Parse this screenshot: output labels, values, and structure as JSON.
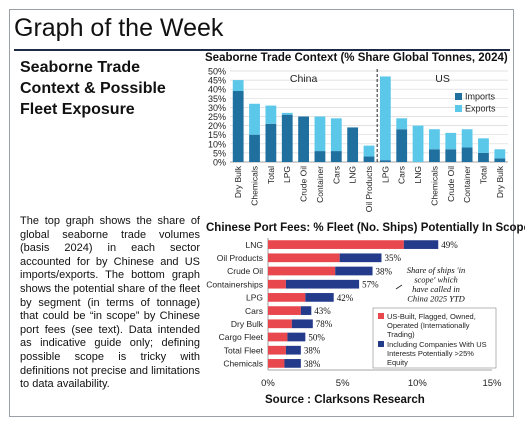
{
  "header": {
    "title": "Graph of the Week",
    "subtitle_lines": [
      "Seaborne Trade",
      "Context & Possible",
      "Fleet Exposure"
    ]
  },
  "description": "The top graph shows the share of global seaborne trade volumes (basis 2024) in each sector accounted for by Chinese and US imports/exports. The bottom graph shows the potential share of the fleet by segment (in terms of tonnage) that could be “in scope” by Chinese port fees (see text). Data intended as indicative guide only; defining possible scope is tricky with definitions not precise and limitations to data availability.",
  "source": "Source : Clarksons Research",
  "colors": {
    "imports": "#1f6f9f",
    "exports": "#5bc8ea",
    "us_built": "#e8474e",
    "us_interests": "#243a8a"
  },
  "chart_data": [
    {
      "type": "bar",
      "title": "Seaborne Trade Context (% Share Global Tonnes, 2024)",
      "ylim": [
        0,
        50
      ],
      "yticks": [
        "0%",
        "5%",
        "10%",
        "15%",
        "20%",
        "25%",
        "30%",
        "35%",
        "40%",
        "45%",
        "50%"
      ],
      "groups": [
        {
          "label": "China",
          "categories": [
            "Dry Bulk",
            "Chemicals",
            "Total",
            "LPG",
            "Crude Oil",
            "Container",
            "Cars",
            "LNG",
            "Oil Products"
          ],
          "imports": [
            39,
            15,
            21,
            26,
            25,
            6,
            6,
            19,
            3
          ],
          "exports": [
            6,
            17,
            10,
            1,
            0,
            19,
            18,
            0,
            6
          ]
        },
        {
          "label": "US",
          "categories": [
            "LPG",
            "Cars",
            "LNG",
            "Chemicals",
            "Crude Oil",
            "Container",
            "Total",
            "Dry Bulk"
          ],
          "imports": [
            1,
            18,
            0,
            7,
            7,
            8,
            5,
            2
          ],
          "exports": [
            46,
            6,
            20,
            11,
            9,
            10,
            8,
            5
          ]
        }
      ],
      "legend": [
        "Imports",
        "Exports"
      ],
      "legend_position": "right"
    },
    {
      "type": "bar",
      "orientation": "horizontal",
      "title": "Chinese Port Fees: % Fleet (No. Ships) Potentially In Scope",
      "xlim": [
        0,
        15
      ],
      "xticks": [
        "0%",
        "5%",
        "10%",
        "15%"
      ],
      "categories": [
        "LNG",
        "Oil Products",
        "Crude Oil",
        "Containerships",
        "LPG",
        "Cars",
        "Dry Bulk",
        "Cargo Fleet",
        "Total Fleet",
        "Chemicals"
      ],
      "series": [
        {
          "name": "US-Built, Flagged, Owned, Operated (Internationally Trading)",
          "values": [
            9.1,
            4.8,
            4.5,
            1.2,
            2.5,
            2.2,
            1.6,
            1.3,
            1.2,
            1.1
          ]
        },
        {
          "name": "Including Companies With US Interests Potentially >25% Equity",
          "values": [
            2.3,
            2.8,
            2.5,
            4.9,
            1.9,
            0.7,
            1.4,
            1.2,
            1.0,
            1.1
          ]
        }
      ],
      "labels": [
        "49%",
        "35%",
        "38%",
        "57%",
        "42%",
        "43%",
        "78%",
        "50%",
        "38%",
        "38%"
      ],
      "annotation": "Share of ships 'in scope' which have called in China 2025 YTD",
      "legend_position": "bottom-right"
    }
  ]
}
